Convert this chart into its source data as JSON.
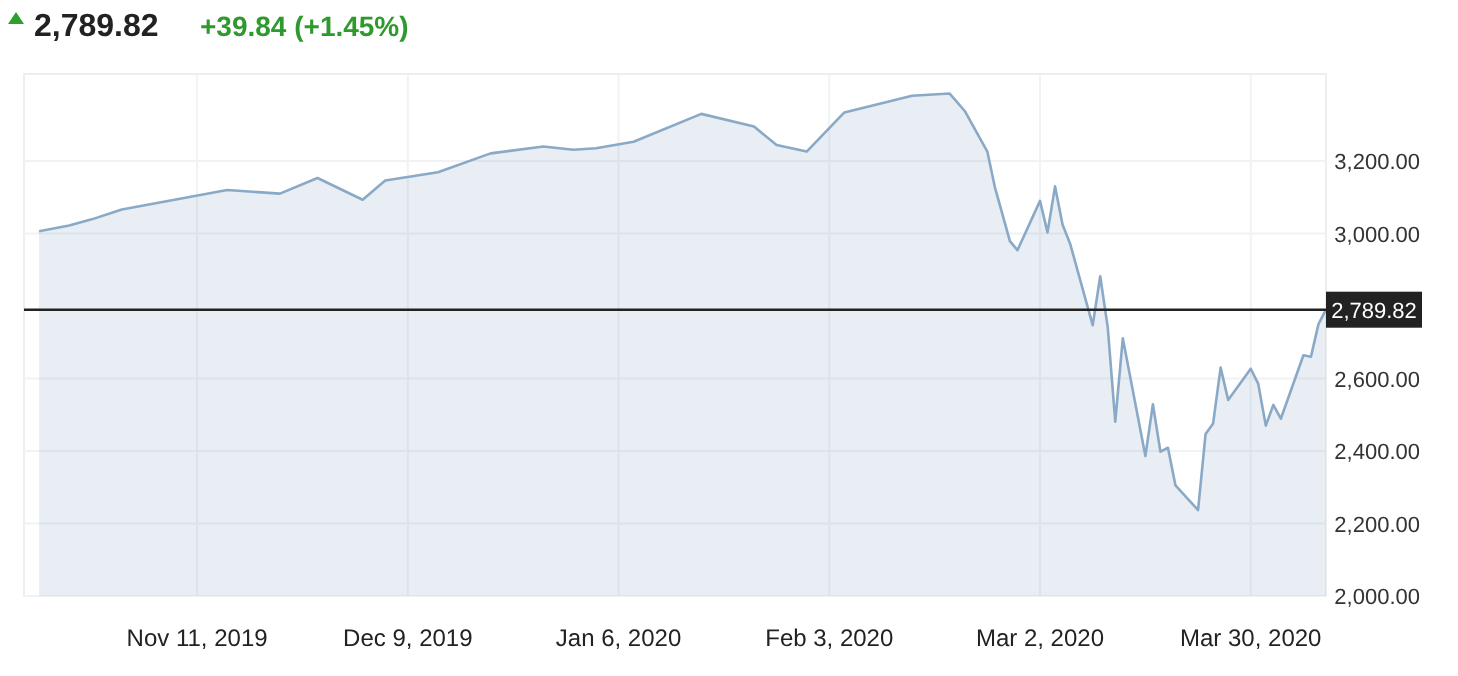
{
  "chart_data": {
    "type": "area",
    "title": "2,789.82",
    "subtitle": "+39.84 (+1.45%)",
    "x": [
      "2019-10-21",
      "2019-10-25",
      "2019-10-28",
      "2019-11-01",
      "2019-11-08",
      "2019-11-15",
      "2019-11-22",
      "2019-11-27",
      "2019-12-03",
      "2019-12-06",
      "2019-12-13",
      "2019-12-20",
      "2019-12-27",
      "2019-12-31",
      "2020-01-03",
      "2020-01-08",
      "2020-01-17",
      "2020-01-24",
      "2020-01-27",
      "2020-01-31",
      "2020-02-05",
      "2020-02-14",
      "2020-02-19",
      "2020-02-21",
      "2020-02-24",
      "2020-02-25",
      "2020-02-27",
      "2020-02-28",
      "2020-03-02",
      "2020-03-03",
      "2020-03-04",
      "2020-03-05",
      "2020-03-06",
      "2020-03-09",
      "2020-03-10",
      "2020-03-11",
      "2020-03-12",
      "2020-03-13",
      "2020-03-16",
      "2020-03-17",
      "2020-03-18",
      "2020-03-19",
      "2020-03-20",
      "2020-03-23",
      "2020-03-24",
      "2020-03-25",
      "2020-03-26",
      "2020-03-27",
      "2020-03-30",
      "2020-03-31",
      "2020-04-01",
      "2020-04-02",
      "2020-04-03",
      "2020-04-06",
      "2020-04-07",
      "2020-04-08",
      "2020-04-09"
    ],
    "series": [
      {
        "color": "#8aa9c6",
        "values": [
          3006,
          3022,
          3039,
          3066,
          3093,
          3120,
          3110,
          3153,
          3093,
          3146,
          3169,
          3221,
          3240,
          3231,
          3235,
          3253,
          3330,
          3295,
          3244,
          3226,
          3334,
          3380,
          3386,
          3338,
          3226,
          3128,
          2979,
          2954,
          3090,
          3003,
          3130,
          3024,
          2972,
          2747,
          2882,
          2741,
          2481,
          2711,
          2386,
          2529,
          2398,
          2409,
          2305,
          2237,
          2447,
          2476,
          2630,
          2541,
          2627,
          2585,
          2470,
          2527,
          2489,
          2664,
          2660,
          2750,
          2790
        ]
      }
    ],
    "xlim": [
      "2019-10-19",
      "2020-04-09"
    ],
    "xticks": [
      {
        "value": "2019-11-11",
        "label": "Nov 11, 2019"
      },
      {
        "value": "2019-12-09",
        "label": "Dec 9, 2019"
      },
      {
        "value": "2020-01-06",
        "label": "Jan 6, 2020"
      },
      {
        "value": "2020-02-03",
        "label": "Feb 3, 2020"
      },
      {
        "value": "2020-03-02",
        "label": "Mar 2, 2020"
      },
      {
        "value": "2020-03-30",
        "label": "Mar 30, 2020"
      }
    ],
    "ylim": [
      2000,
      3440
    ],
    "yticks": [
      {
        "value": 2000,
        "label": "2,000.00"
      },
      {
        "value": 2200,
        "label": "2,200.00"
      },
      {
        "value": 2400,
        "label": "2,400.00"
      },
      {
        "value": 2600,
        "label": "2,600.00"
      },
      {
        "value": 3000,
        "label": "3,000.00"
      },
      {
        "value": 3200,
        "label": "3,200.00"
      }
    ],
    "ref_lines": [
      {
        "axis": "y",
        "value": 2789.82,
        "label": "2,789.82",
        "color": "#222222"
      }
    ],
    "grid": true
  }
}
